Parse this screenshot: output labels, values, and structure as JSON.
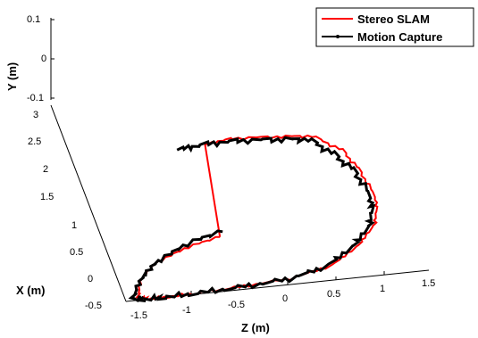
{
  "chart_data": {
    "type": "line",
    "projection": "3d",
    "xlabel": "X (m)",
    "ylabel": "Y (m)",
    "zlabel": "Z (m)",
    "xlim": [
      -0.5,
      3
    ],
    "ylim": [
      -0.1,
      0.1
    ],
    "zlim": [
      -1.5,
      1.5
    ],
    "x_ticks": [
      "-0.5",
      "0",
      "0.5",
      "1",
      "1.5",
      "2",
      "2.5",
      "3"
    ],
    "y_ticks": [
      "-0.1",
      "0",
      "0.1"
    ],
    "z_ticks": [
      "-1.5",
      "-1",
      "-0.5",
      "0",
      "0.5",
      "1",
      "1.5"
    ],
    "grid": false,
    "legend_position": "top-right",
    "legend": [
      "Stereo SLAM",
      "Motion Capture"
    ],
    "series": [
      {
        "name": "Stereo SLAM",
        "color": "#ff0000",
        "trajectory": "loop",
        "z": [
          -0.5,
          -0.9,
          -1.25,
          -1.45,
          -1.55,
          -1.45,
          -1.2,
          -0.85,
          -0.45,
          0.05,
          0.5,
          0.85,
          1.1,
          1.2,
          1.15,
          1.05,
          0.8,
          0.45,
          0.0,
          -0.3
        ],
        "x": [
          0.95,
          0.8,
          0.6,
          0.35,
          0.05,
          0.0,
          0.0,
          0.02,
          0.05,
          0.1,
          0.25,
          0.55,
          0.9,
          1.3,
          1.8,
          2.2,
          2.5,
          2.55,
          2.6,
          2.55
        ],
        "y": [
          0.0,
          0.0,
          0.0,
          0.0,
          0.0,
          0.0,
          0.0,
          0.0,
          0.0,
          0.0,
          0.0,
          0.0,
          0.0,
          0.0,
          0.0,
          0.0,
          0.0,
          0.0,
          0.0,
          0.0
        ]
      },
      {
        "name": "Motion Capture",
        "color": "#000000",
        "trajectory": "open",
        "z": [
          -0.45,
          -0.9,
          -1.25,
          -1.45,
          -1.6,
          -1.5,
          -1.25,
          -0.85,
          -0.4,
          0.05,
          0.45,
          0.8,
          1.05,
          1.15,
          1.1,
          0.95,
          0.75,
          0.45,
          0.05,
          -0.3,
          -0.6
        ],
        "x": [
          1.05,
          0.85,
          0.6,
          0.35,
          0.05,
          0.0,
          0.0,
          0.02,
          0.05,
          0.1,
          0.25,
          0.55,
          0.9,
          1.3,
          1.8,
          2.15,
          2.45,
          2.5,
          2.55,
          2.55,
          2.5
        ],
        "y": [
          0.0,
          0.0,
          0.0,
          0.0,
          0.0,
          0.0,
          0.0,
          0.0,
          0.0,
          0.0,
          0.0,
          0.0,
          0.0,
          0.0,
          0.0,
          0.0,
          0.0,
          0.0,
          0.0,
          0.0,
          0.0
        ]
      }
    ]
  }
}
